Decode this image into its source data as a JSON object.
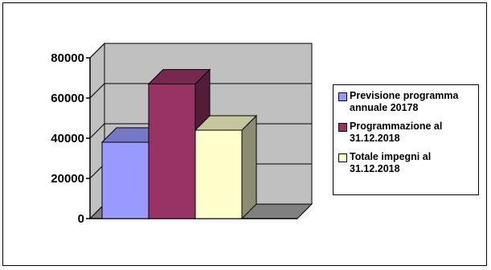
{
  "chart_data": {
    "type": "bar",
    "style": "3d-column",
    "title": "",
    "xlabel": "",
    "ylabel": "",
    "ylim": [
      0,
      80000
    ],
    "yticks": [
      0,
      20000,
      40000,
      60000,
      80000
    ],
    "ytick_labels": [
      "0",
      "20000",
      "40000",
      "60000",
      "80000"
    ],
    "grid": true,
    "legend_position": "right",
    "series": [
      {
        "name": "Previsione programma annuale 20178",
        "value": 38000,
        "color": "#9999ff"
      },
      {
        "name": "Programmazione al 31.12.2018",
        "value": 67000,
        "color": "#993366"
      },
      {
        "name": "Totale impegni al 31.12.2018",
        "value": 44000,
        "color": "#ffffcc"
      }
    ],
    "wall_color": "#c0c0c0",
    "floor_color": "#808080"
  }
}
